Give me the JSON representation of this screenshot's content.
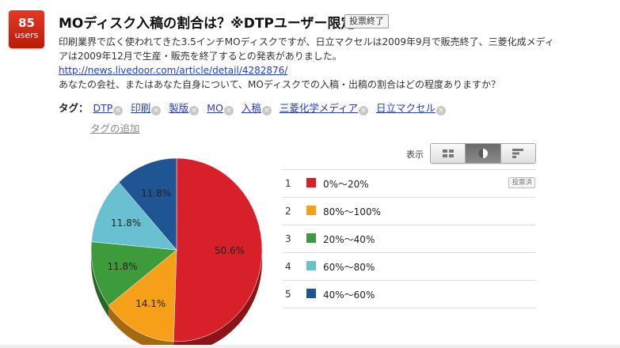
{
  "badge": {
    "count": "85",
    "unit": "users"
  },
  "title": "MOディスク入稿の割合は？※DTPユーザー限定",
  "status": "投票終了",
  "description": {
    "line1": "印刷業界で広く使われてきた3.5インチMOディスクですが、日立マクセルは2009年9月で販売終了、三菱化成メディ",
    "line2": "アは2009年12月で生産・販売を終了するとの発表がありました。",
    "link": "http://news.livedoor.com/article/detail/4282876/",
    "question": "あなたの会社、またはあなた自身について、MOディスクでの入稿・出稿の割合はどの程度ありますか？"
  },
  "tags": {
    "label": "タグ：",
    "items": [
      "DTP",
      "印刷",
      "製版",
      "MO",
      "入稿",
      "三菱化学メディア",
      "日立マクセル"
    ],
    "remove_glyph": "×",
    "add_label": "タグの追加"
  },
  "view": {
    "label": "表示",
    "options": [
      "grid-icon",
      "pie-chart-icon",
      "bar-chart-icon"
    ],
    "active": "pie-chart-icon"
  },
  "results": {
    "voted_label": "投票済",
    "rows": [
      {
        "rank": "1",
        "name": "0%〜20%",
        "color": "#d8202a",
        "voted": true
      },
      {
        "rank": "2",
        "name": "80%〜100%",
        "color": "#f6a01a",
        "voted": false
      },
      {
        "rank": "3",
        "name": "20%〜40%",
        "color": "#3e9b3b",
        "voted": false
      },
      {
        "rank": "4",
        "name": "60%〜80%",
        "color": "#68c0d0",
        "voted": false
      },
      {
        "rank": "5",
        "name": "40%〜60%",
        "color": "#1f5593",
        "voted": false
      }
    ]
  },
  "chart_data": {
    "type": "pie",
    "categories": [
      "0%〜20%",
      "80%〜100%",
      "20%〜40%",
      "60%〜80%",
      "40%〜60%"
    ],
    "values": [
      50.6,
      14.1,
      11.8,
      11.8,
      11.8
    ],
    "labels": [
      "50.6%",
      "14.1%",
      "11.8%",
      "11.8%",
      "11.8%"
    ],
    "colors": [
      "#d8202a",
      "#f6a01a",
      "#3e9b3b",
      "#68c0d0",
      "#1f5593"
    ],
    "dark_colors": [
      "#8c1419",
      "#a56a10",
      "#286526",
      "#447e88",
      "#143760"
    ],
    "title": "",
    "legend": "right"
  }
}
